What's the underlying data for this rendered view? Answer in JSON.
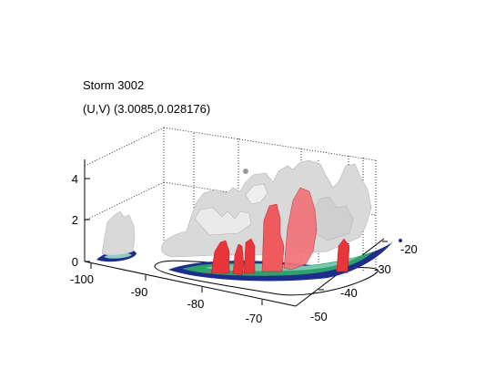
{
  "figure": {
    "title_line1": "Storm 3002",
    "title_line2": "(U,V) (3.0085,0.028176)",
    "z_ticks": [
      "0",
      "2",
      "4"
    ],
    "x_ticks": [
      "-100",
      "-90",
      "-80",
      "-70"
    ],
    "y_ticks": [
      "-20",
      "-30",
      "-40",
      "-50"
    ]
  },
  "colors": {
    "gray_isosurface": "#d9d9d9",
    "red_isosurface": "#e8353a",
    "base_dark": "#1e2d8c",
    "base_mid": "#2ba36b",
    "base_light": "#8fd0c5"
  }
}
